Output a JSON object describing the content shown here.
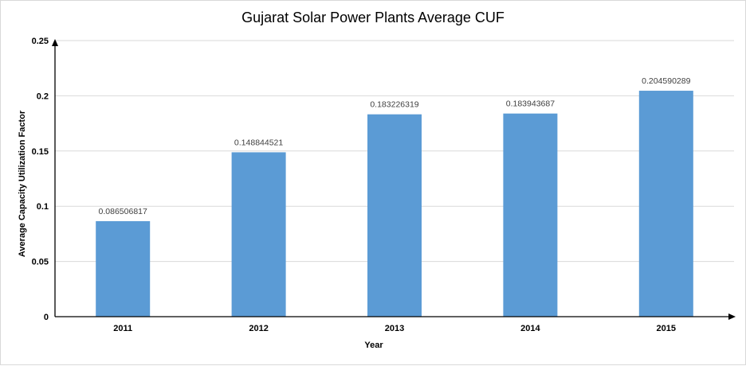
{
  "chart_data": {
    "type": "bar",
    "title": "Gujarat Solar Power Plants Average CUF",
    "xlabel": "Year",
    "ylabel": "Average Capacity Utilization Factor",
    "categories": [
      "2011",
      "2012",
      "2013",
      "2014",
      "2015"
    ],
    "values": [
      0.086506817,
      0.148844521,
      0.183226319,
      0.183943687,
      0.204590289
    ],
    "data_labels": [
      "0.086506817",
      "0.148844521",
      "0.183226319",
      "0.183943687",
      "0.204590289"
    ],
    "ylim": [
      0,
      0.25
    ],
    "yticks": [
      0,
      0.05,
      0.1,
      0.15,
      0.2,
      0.25
    ],
    "ytick_labels": [
      "0",
      "0.05",
      "0.1",
      "0.15",
      "0.2",
      "0.25"
    ],
    "grid": true,
    "legend": "none",
    "colors": {
      "bar": "#5b9bd5",
      "grid": "#d9d9d9",
      "axis": "#000000"
    }
  }
}
